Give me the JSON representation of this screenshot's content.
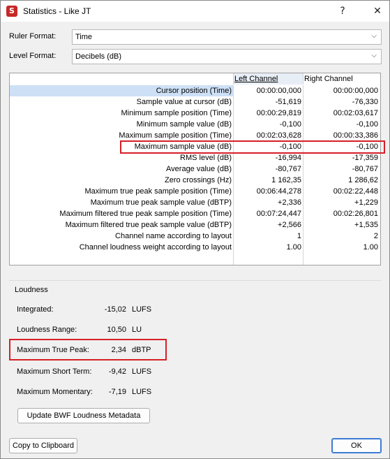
{
  "window": {
    "title": "Statistics - Like JT",
    "app_icon_letter": "S",
    "help_glyph": "?",
    "close_glyph": "✕"
  },
  "ruler_format": {
    "label": "Ruler Format:",
    "value": "Time"
  },
  "level_format": {
    "label": "Level Format:",
    "value": "Decibels (dB)"
  },
  "chevron_glyph": "⌵",
  "table": {
    "headers": {
      "left": "Left Channel",
      "right": "Right Channel"
    },
    "rows": [
      {
        "label": "Cursor position (Time)",
        "left": "00:00:00,000",
        "right": "00:00:00,000"
      },
      {
        "label": "Sample value at cursor (dB)",
        "left": "-51,619",
        "right": "-76,330"
      },
      {
        "label": "Minimum sample position (Time)",
        "left": "00:00:29,819",
        "right": "00:02:03,617"
      },
      {
        "label": "Minimum sample value (dB)",
        "left": "-0,100",
        "right": "-0,100"
      },
      {
        "label": "Maximum sample position (Time)",
        "left": "00:02:03,628",
        "right": "00:00:33,386"
      },
      {
        "label": "Maximum sample value (dB)",
        "left": "-0,100",
        "right": "-0,100"
      },
      {
        "label": "RMS level (dB)",
        "left": "-16,994",
        "right": "-17,359"
      },
      {
        "label": "Average value (dB)",
        "left": "-80,767",
        "right": "-80,767"
      },
      {
        "label": "Zero crossings (Hz)",
        "left": "1 162,35",
        "right": "1 286,62"
      },
      {
        "label": "Maximum true peak sample position (Time)",
        "left": "00:06:44,278",
        "right": "00:02:22,448"
      },
      {
        "label": "Maximum true peak sample value (dBTP)",
        "left": "+2,336",
        "right": "+1,229"
      },
      {
        "label": "Maximum filtered true peak sample position (Time)",
        "left": "00:07:24,447",
        "right": "00:02:26,801"
      },
      {
        "label": "Maximum filtered true peak sample value (dBTP)",
        "left": "+2,566",
        "right": "+1,535"
      },
      {
        "label": "Channel name according to layout",
        "left": "1",
        "right": "2"
      },
      {
        "label": "Channel loudness weight according to layout",
        "left": "1.00",
        "right": "1.00"
      }
    ]
  },
  "loudness": {
    "title": "Loudness",
    "items": [
      {
        "label": "Integrated:",
        "value": "-15,02",
        "unit": "LUFS"
      },
      {
        "label": "Loudness Range:",
        "value": "10,50",
        "unit": "LU"
      },
      {
        "label": "Maximum True Peak:",
        "value": "2,34",
        "unit": "dBTP"
      },
      {
        "label": "Maximum Short Term:",
        "value": "-9,42",
        "unit": "LUFS"
      },
      {
        "label": "Maximum Momentary:",
        "value": "-7,19",
        "unit": "LUFS"
      }
    ],
    "update_button": "Update BWF Loudness Metadata"
  },
  "footer": {
    "copy_button": "Copy to Clipboard",
    "ok_button": "OK"
  },
  "colors": {
    "highlight": "#d62027",
    "selection": "#cde0f6",
    "app_icon": "#c62828",
    "ok_border": "#3d7bd5"
  }
}
